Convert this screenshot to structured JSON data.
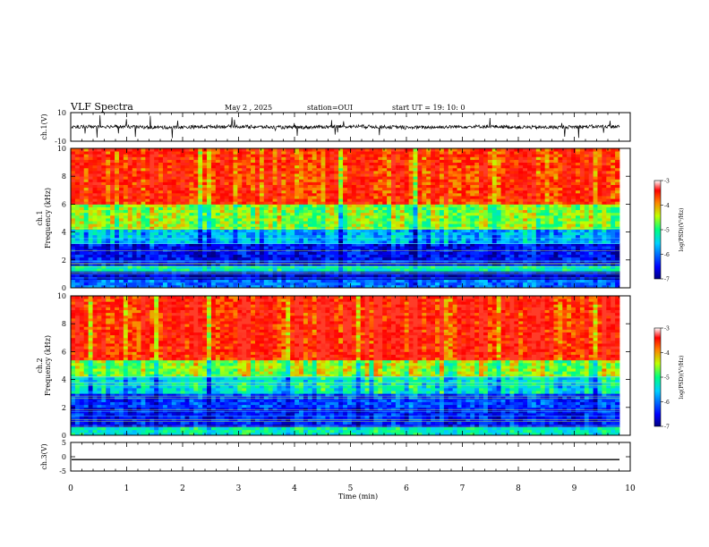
{
  "header": {
    "title": "VLF Spectra",
    "date": "May 2 , 2025",
    "station": "station=OUI",
    "start": "start  UT =   19: 10: 0"
  },
  "chart_data": [
    {
      "type": "line",
      "name": "ch1-waveform",
      "ylabel": "ch.1(V)",
      "ylim": [
        -10,
        10
      ],
      "y_ticks": [
        "10",
        "-10"
      ],
      "baseline": 0,
      "series": [
        {
          "values": [
            0,
            1,
            -1,
            1.5,
            -2,
            0.5,
            -0.5,
            2,
            -1,
            0
          ]
        }
      ]
    },
    {
      "type": "heatmap",
      "name": "ch1-spectrogram",
      "ylabel": "ch.1\nFrequency (kHz)",
      "ylim": [
        0,
        10
      ],
      "y_ticks": [
        "0",
        "2",
        "4",
        "6",
        "8",
        "10"
      ],
      "xlim": [
        0,
        10
      ],
      "colorbar": {
        "label": "log(PSD)(V²/Hz)",
        "ticks": [
          "-3",
          "-4",
          "-5",
          "-6",
          "-7"
        ],
        "range": [
          -7,
          -3
        ]
      },
      "bands": [
        {
          "f_khz": [
            0,
            0.6
          ],
          "log_psd": -6.0
        },
        {
          "f_khz": [
            0.6,
            1.2
          ],
          "log_psd": -6.7
        },
        {
          "f_khz": [
            1.2,
            1.7
          ],
          "log_psd": -5.2
        },
        {
          "f_khz": [
            1.7,
            3.2
          ],
          "log_psd": -6.5
        },
        {
          "f_khz": [
            3.2,
            4.3
          ],
          "log_psd": -5.7
        },
        {
          "f_khz": [
            4.3,
            6.0
          ],
          "log_psd": -4.6
        },
        {
          "f_khz": [
            6.0,
            10.0
          ],
          "log_psd": -3.5
        }
      ]
    },
    {
      "type": "heatmap",
      "name": "ch2-spectrogram",
      "ylabel": "ch.2\nFrequency (kHz)",
      "ylim": [
        0,
        10
      ],
      "y_ticks": [
        "0",
        "2",
        "4",
        "6",
        "8",
        "10"
      ],
      "xlim": [
        0,
        10
      ],
      "colorbar": {
        "label": "log(PSD)(V²/Hz)",
        "ticks": [
          "-3",
          "-4",
          "-5",
          "-6",
          "-7"
        ],
        "range": [
          -7,
          -3
        ]
      },
      "bands": [
        {
          "f_khz": [
            0,
            0.6
          ],
          "log_psd": -5.2
        },
        {
          "f_khz": [
            0.6,
            2.0
          ],
          "log_psd": -6.4
        },
        {
          "f_khz": [
            2.0,
            3.0
          ],
          "log_psd": -6.2
        },
        {
          "f_khz": [
            3.0,
            4.2
          ],
          "log_psd": -5.3
        },
        {
          "f_khz": [
            4.2,
            5.5
          ],
          "log_psd": -4.5
        },
        {
          "f_khz": [
            5.5,
            10.0
          ],
          "log_psd": -3.3
        }
      ]
    },
    {
      "type": "line",
      "name": "ch3-waveform",
      "ylabel": "ch.3(V)",
      "ylim": [
        -5,
        5
      ],
      "y_ticks": [
        "5",
        "0",
        "-5"
      ],
      "series": [
        {
          "values": [
            -1,
            -1
          ]
        }
      ]
    }
  ],
  "xaxis": {
    "label": "Time (min)",
    "ticks": [
      "0",
      "1",
      "2",
      "3",
      "4",
      "5",
      "6",
      "7",
      "8",
      "9",
      "10"
    ],
    "xlim": [
      0,
      10
    ]
  }
}
